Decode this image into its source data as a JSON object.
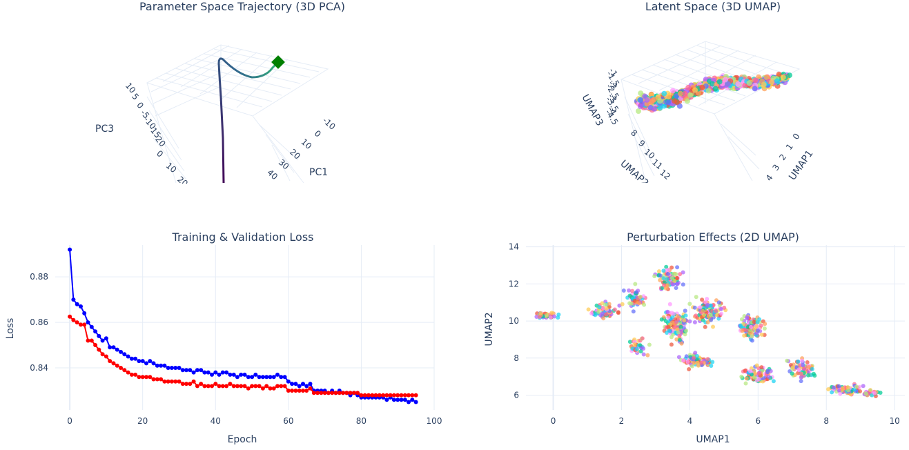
{
  "colors": {
    "train": "#0000ff",
    "val": "#ff0000",
    "endpoint": "#008000",
    "trajectory_start": "#440154",
    "trajectory_end": "#35b779",
    "cluster_palette": [
      "#ef553b",
      "#636efa",
      "#00cc96",
      "#ab63fa",
      "#ffa15a",
      "#19d3f3",
      "#ff6692",
      "#b6e880",
      "#ff97ff",
      "#fecb52"
    ]
  },
  "chart_data": [
    {
      "type": "line",
      "title": "Parameter Space Trajectory (3D PCA)",
      "projection": "3d",
      "axes": {
        "x": {
          "label": "PC1",
          "ticks": [
            "-10",
            "0",
            "10",
            "20",
            "30",
            "40"
          ]
        },
        "y": {
          "label": "",
          "ticks": [
            "0",
            "10",
            "20"
          ]
        },
        "z": {
          "label": "PC3",
          "ticks": [
            "10",
            "5",
            "0",
            "-5",
            "-10",
            "-15",
            "-20"
          ]
        }
      },
      "series": [
        {
          "points_3d": [
            [
              -10,
              10,
              8
            ],
            [
              0,
              5,
              7
            ],
            [
              10,
              0,
              6
            ],
            [
              20,
              -5,
              2
            ],
            [
              30,
              -8,
              -6
            ],
            [
              40,
              -12,
              -20
            ]
          ]
        }
      ],
      "markers": [
        {
          "shape": "diamond",
          "color_key": "endpoint"
        }
      ]
    },
    {
      "type": "scatter",
      "title": "Latent Space (3D UMAP)",
      "projection": "3d",
      "axes": {
        "x": {
          "label": "UMAP1",
          "ticks": [
            "0",
            "1",
            "2",
            "3",
            "4"
          ]
        },
        "y": {
          "label": "UMAP2",
          "ticks": [
            "8",
            "9",
            "10",
            "11",
            "12"
          ]
        },
        "z": {
          "label": "UMAP3",
          "ticks": [
            "-1",
            "-1.5",
            "-2",
            "-2.5",
            "-3",
            "-3.5",
            "-4",
            "-4.5"
          ]
        }
      },
      "point_count": 900
    },
    {
      "type": "line",
      "title": "Training & Validation Loss",
      "xlabel": "Epoch",
      "ylabel": "Loss",
      "xlim": [
        -4,
        100
      ],
      "ylim": [
        0.8215,
        0.894
      ],
      "x_ticks": [
        0,
        20,
        40,
        60,
        80,
        100
      ],
      "y_ticks": [
        0.84,
        0.86,
        0.88
      ],
      "grid": true,
      "series": [
        {
          "values": [
            0.892,
            0.87,
            0.868,
            0.867,
            0.864,
            0.86,
            0.858,
            0.856,
            0.854,
            0.852,
            0.853,
            0.849,
            0.849,
            0.848,
            0.847,
            0.846,
            0.845,
            0.844,
            0.844,
            0.843,
            0.843,
            0.842,
            0.843,
            0.842,
            0.841,
            0.841,
            0.841,
            0.84,
            0.84,
            0.84,
            0.84,
            0.839,
            0.839,
            0.839,
            0.838,
            0.839,
            0.839,
            0.838,
            0.838,
            0.837,
            0.838,
            0.837,
            0.838,
            0.838,
            0.837,
            0.837,
            0.836,
            0.837,
            0.837,
            0.836,
            0.836,
            0.837,
            0.836,
            0.836,
            0.836,
            0.836,
            0.836,
            0.837,
            0.836,
            0.836,
            0.834,
            0.833,
            0.833,
            0.832,
            0.833,
            0.832,
            0.833,
            0.83,
            0.83,
            0.83,
            0.83,
            0.829,
            0.83,
            0.829,
            0.83,
            0.829,
            0.829,
            0.828,
            0.829,
            0.828,
            0.827,
            0.827,
            0.827,
            0.827,
            0.827,
            0.827,
            0.827,
            0.826,
            0.827,
            0.826,
            0.826,
            0.826,
            0.826,
            0.825,
            0.826,
            0.825
          ]
        },
        {
          "values": [
            0.8625,
            0.861,
            0.86,
            0.859,
            0.859,
            0.852,
            0.852,
            0.85,
            0.848,
            0.846,
            0.845,
            0.843,
            0.842,
            0.841,
            0.84,
            0.839,
            0.838,
            0.837,
            0.837,
            0.836,
            0.836,
            0.836,
            0.836,
            0.835,
            0.835,
            0.835,
            0.834,
            0.834,
            0.834,
            0.834,
            0.834,
            0.833,
            0.833,
            0.833,
            0.834,
            0.832,
            0.833,
            0.832,
            0.832,
            0.832,
            0.833,
            0.832,
            0.832,
            0.832,
            0.833,
            0.832,
            0.832,
            0.832,
            0.832,
            0.831,
            0.832,
            0.832,
            0.832,
            0.831,
            0.832,
            0.831,
            0.831,
            0.832,
            0.832,
            0.832,
            0.83,
            0.83,
            0.83,
            0.83,
            0.83,
            0.83,
            0.831,
            0.829,
            0.829,
            0.829,
            0.829,
            0.829,
            0.829,
            0.829,
            0.829,
            0.829,
            0.829,
            0.829,
            0.829,
            0.829,
            0.828,
            0.828,
            0.828,
            0.828,
            0.828,
            0.828,
            0.828,
            0.828,
            0.828,
            0.828,
            0.828,
            0.828,
            0.828,
            0.828,
            0.828,
            0.828
          ]
        }
      ]
    },
    {
      "type": "scatter",
      "title": "Perturbation Effects (2D UMAP)",
      "xlabel": "UMAP1",
      "ylabel": "UMAP2",
      "xlim": [
        -0.8,
        10.3
      ],
      "ylim": [
        5.2,
        14.1
      ],
      "x_ticks": [
        0,
        2,
        4,
        6,
        8,
        10
      ],
      "y_ticks": [
        6,
        8,
        10,
        12,
        14
      ],
      "grid": true,
      "point_count": 900
    }
  ]
}
